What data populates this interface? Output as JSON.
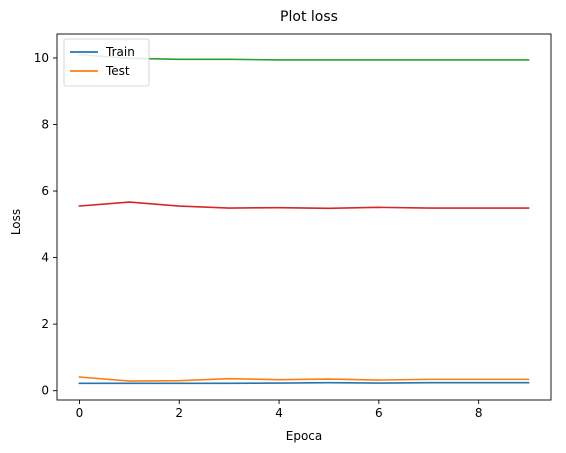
{
  "chart_data": {
    "type": "line",
    "title": "Plot loss",
    "xlabel": "Epoca",
    "ylabel": "Loss",
    "xlim": [
      -0.45,
      9.45
    ],
    "ylim": [
      -0.28,
      10.72
    ],
    "xticks": [
      0,
      2,
      4,
      6,
      8
    ],
    "yticks": [
      0,
      2,
      4,
      6,
      8,
      10
    ],
    "grid": false,
    "legend_position": "top-left",
    "x": [
      0,
      1,
      2,
      3,
      4,
      5,
      6,
      7,
      8,
      9
    ],
    "series": [
      {
        "name": "Train",
        "color": "#1f77b4",
        "values": [
          0.22,
          0.22,
          0.22,
          0.22,
          0.23,
          0.24,
          0.23,
          0.24,
          0.24,
          0.24
        ]
      },
      {
        "name": "Test",
        "color": "#ff7f0e",
        "values": [
          0.41,
          0.29,
          0.3,
          0.36,
          0.33,
          0.35,
          0.32,
          0.34,
          0.34,
          0.34
        ]
      },
      {
        "color": "#2ca02c",
        "values": [
          10.1,
          9.99,
          9.96,
          9.96,
          9.94,
          9.94,
          9.94,
          9.94,
          9.94,
          9.94
        ]
      },
      {
        "color": "#d62728",
        "values": [
          5.55,
          5.67,
          5.55,
          5.49,
          5.5,
          5.48,
          5.51,
          5.49,
          5.49,
          5.49
        ]
      }
    ]
  }
}
